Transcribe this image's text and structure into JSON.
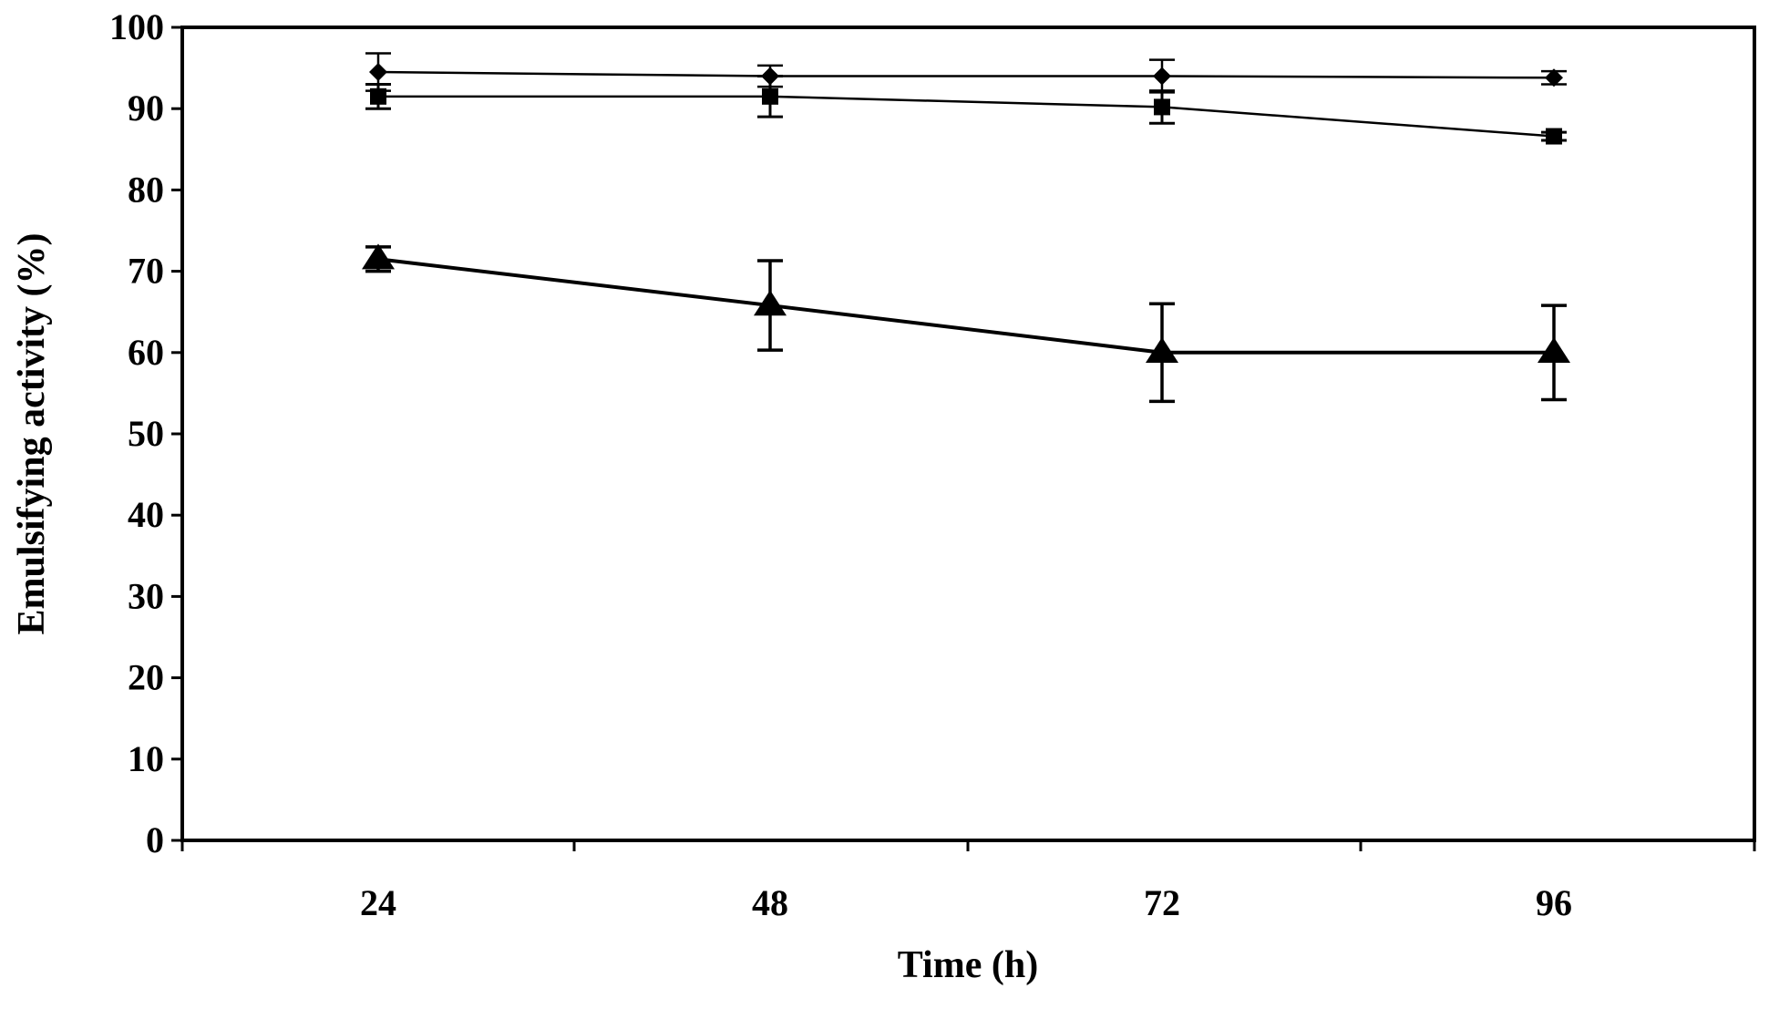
{
  "chart_data": {
    "type": "line",
    "title": "",
    "xlabel": "Time (h)",
    "ylabel": "Emulsifying activity (%)",
    "categories": [
      "24",
      "48",
      "72",
      "96"
    ],
    "ylim": [
      0,
      100
    ],
    "yticks": [
      0,
      10,
      20,
      30,
      40,
      50,
      60,
      70,
      80,
      90,
      100
    ],
    "grid": false,
    "legend": "none",
    "series": [
      {
        "name": "diamond series",
        "marker": "diamond",
        "values": [
          94.5,
          94,
          94,
          93.8
        ],
        "errors": [
          2.3,
          1.3,
          2.0,
          0.8
        ]
      },
      {
        "name": "square series",
        "marker": "square",
        "values": [
          91.5,
          91.5,
          90.2,
          86.6
        ],
        "errors": [
          1.5,
          2.5,
          2.0,
          0.5
        ]
      },
      {
        "name": "triangle series",
        "marker": "triangle",
        "values": [
          71.5,
          65.8,
          60,
          60
        ],
        "errors": [
          1.5,
          5.5,
          6.0,
          5.8
        ]
      }
    ]
  }
}
